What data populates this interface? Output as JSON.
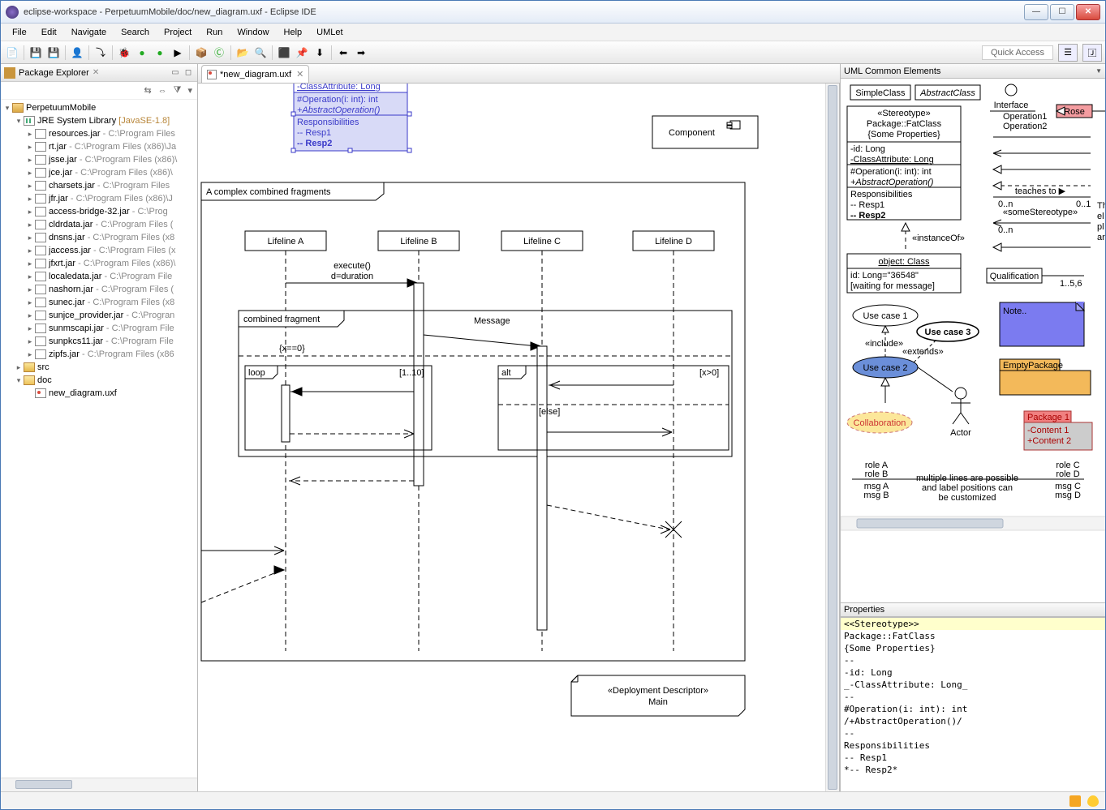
{
  "window": {
    "title": "eclipse-workspace - PerpetuumMobile/doc/new_diagram.uxf - Eclipse IDE"
  },
  "menu": [
    "File",
    "Edit",
    "Navigate",
    "Search",
    "Project",
    "Run",
    "Window",
    "Help",
    "UMLet"
  ],
  "quick_access": "Quick Access",
  "package_explorer": {
    "title": "Package Explorer",
    "project": "PerpetuumMobile",
    "library": "JRE System Library",
    "library_tag": "[JavaSE-1.8]",
    "jars": [
      {
        "n": "resources.jar",
        "p": "C:\\Program Files"
      },
      {
        "n": "rt.jar",
        "p": "C:\\Program Files (x86)\\Ja"
      },
      {
        "n": "jsse.jar",
        "p": "C:\\Program Files (x86)\\"
      },
      {
        "n": "jce.jar",
        "p": "C:\\Program Files (x86)\\"
      },
      {
        "n": "charsets.jar",
        "p": "C:\\Program Files"
      },
      {
        "n": "jfr.jar",
        "p": "C:\\Program Files (x86)\\J"
      },
      {
        "n": "access-bridge-32.jar",
        "p": "C:\\Prog"
      },
      {
        "n": "cldrdata.jar",
        "p": "C:\\Program Files ("
      },
      {
        "n": "dnsns.jar",
        "p": "C:\\Program Files (x8"
      },
      {
        "n": "jaccess.jar",
        "p": "C:\\Program Files (x"
      },
      {
        "n": "jfxrt.jar",
        "p": "C:\\Program Files (x86)\\"
      },
      {
        "n": "localedata.jar",
        "p": "C:\\Program File"
      },
      {
        "n": "nashorn.jar",
        "p": "C:\\Program Files ("
      },
      {
        "n": "sunec.jar",
        "p": "C:\\Program Files (x8"
      },
      {
        "n": "sunjce_provider.jar",
        "p": "C:\\Progran"
      },
      {
        "n": "sunmscapi.jar",
        "p": "C:\\Program File"
      },
      {
        "n": "sunpkcs11.jar",
        "p": "C:\\Program File"
      },
      {
        "n": "zipfs.jar",
        "p": "C:\\Program Files (x86"
      }
    ],
    "src": "src",
    "doc": "doc",
    "file": "new_diagram.uxf"
  },
  "editor": {
    "tab": "*new_diagram.uxf",
    "class_box": {
      "attr": "-ClassAttribute: Long",
      "op1": "#Operation(i: int): int",
      "op2": "+AbstractOperation()",
      "resp_h": "Responsibilities",
      "resp1": "-- Resp1",
      "resp2": "-- Resp2"
    },
    "component": "Component",
    "frame_title": "A complex combined fragments",
    "lifelines": [
      "Lifeline A",
      "Lifeline B",
      "Lifeline C",
      "Lifeline D"
    ],
    "msg_execute": "execute()",
    "msg_duration": "d=duration",
    "cf_title": "combined fragment",
    "cf_msg": "Message",
    "guard_x0": "{x==0}",
    "loop": "loop",
    "loop_cond": "[1..10]",
    "alt": "alt",
    "alt_cond": "[x>0]",
    "alt_else": "[else]",
    "deploy1": "«Deployment Descriptor»",
    "deploy2": "Main"
  },
  "palette": {
    "title": "UML Common Elements",
    "simple": "SimpleClass",
    "abstract": "AbstractClass",
    "interface": "Interface",
    "op1": "Operation1",
    "op2": "Operation2",
    "rose": "Rose",
    "fat": {
      "stereo": "«Stereotype»",
      "pkg": "Package::FatClass",
      "props": "{Some Properties}",
      "id": "-id: Long",
      "cattr": "-ClassAttribute: Long",
      "opA": "#Operation(i: int): int",
      "opB": "+AbstractOperation()",
      "resp": "Responsibilities",
      "r1": "-- Resp1",
      "r2": "-- Resp2"
    },
    "teaches": "teaches to ▶",
    "card1": "0..n",
    "card2": "0..1",
    "some_stereo": "«someStereotype»",
    "card3": "0..n",
    "instanceof": "«instanceOf»",
    "obj_title": "object: Class",
    "obj_l1": "id: Long=\"36548\"",
    "obj_l2": "[waiting for message]",
    "qual": "Qualification",
    "qual_c": "1..5,6",
    "uc1": "Use case 1",
    "uc2": "Use case 2",
    "uc3": "Use case 3",
    "include": "«include»",
    "extends": "«extends»",
    "collab": "Collaboration",
    "actor": "Actor",
    "note": "Note..",
    "emptypkg": "EmptyPackage",
    "pkg1": "Package 1",
    "pkg_c1": "-Content 1",
    "pkg_c2": "+Content 2",
    "roleA": "role A",
    "roleB": "role B",
    "msgA": "msg A",
    "msgB": "msg B",
    "roleC": "role C",
    "roleD": "role D",
    "msgC": "msg C",
    "msgD": "msg D",
    "multi1": "multiple lines are possible",
    "multi2": "and label positions can",
    "multi3": "be customized",
    "side": "Th\nel\npl\nar"
  },
  "properties": {
    "title": "Properties",
    "lines": [
      "<<Stereotype>>",
      "Package::FatClass",
      "{Some Properties}",
      "--",
      "-id: Long",
      "_-ClassAttribute: Long_",
      "--",
      "#Operation(i: int): int",
      "/+AbstractOperation()/",
      "--",
      "Responsibilities",
      "-- Resp1",
      "*-- Resp2*"
    ]
  },
  "colors": {
    "sel_fill": "#d8daf7",
    "sel_stroke": "#3a3ac9",
    "note_fill": "#7b7bf0",
    "pkg_fill": "#f3b95a",
    "pkg_red": "#f08080",
    "uc_blue": "#6b8fd9",
    "collab_fill": "#fce79a",
    "rose_fill": "#f49ca0"
  }
}
